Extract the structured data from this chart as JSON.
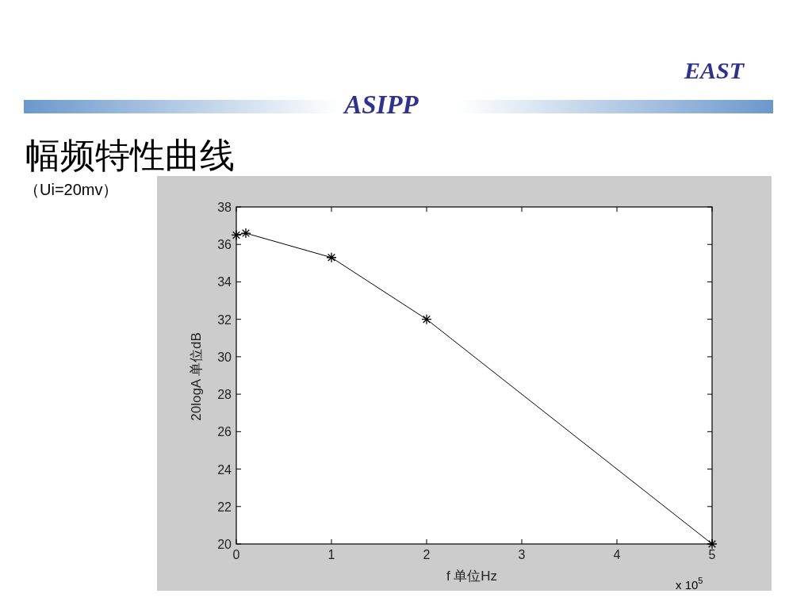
{
  "chart_data": {
    "type": "line",
    "title": "幅频特性曲线",
    "subtitle": "（Ui=20mv）",
    "xlabel": "f 单位Hz",
    "ylabel": "20logA 单位dB",
    "annotations": [
      "x 10$^{5}$",
      "EAST",
      "ASIPP"
    ],
    "x": [
      0,
      0.1,
      1,
      2,
      5
    ],
    "series": [
      {
        "color": "#000000",
        "values": [
          36.5,
          36.6,
          35.3,
          32.0,
          20.0
        ]
      }
    ],
    "xlim": [
      0,
      5
    ],
    "xticks": [
      0,
      1,
      2,
      3,
      4,
      5
    ],
    "ylim": [
      20,
      38
    ],
    "yticks": [
      20,
      22,
      24,
      26,
      28,
      30,
      32,
      34,
      36,
      38
    ],
    "marker": "cross",
    "line_style": "solid"
  }
}
